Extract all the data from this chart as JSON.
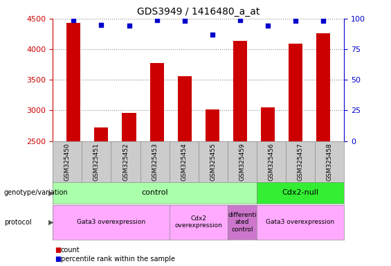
{
  "title": "GDS3949 / 1416480_a_at",
  "samples": [
    "GSM325450",
    "GSM325451",
    "GSM325452",
    "GSM325453",
    "GSM325454",
    "GSM325455",
    "GSM325459",
    "GSM325456",
    "GSM325457",
    "GSM325458"
  ],
  "counts": [
    4430,
    2720,
    2960,
    3770,
    3560,
    3010,
    4140,
    3050,
    4090,
    4260
  ],
  "percentile_ranks": [
    99,
    95,
    94,
    99,
    98,
    87,
    99,
    94,
    98,
    98
  ],
  "ylim_left": [
    2500,
    4500
  ],
  "ylim_right": [
    0,
    100
  ],
  "yticks_left": [
    2500,
    3000,
    3500,
    4000,
    4500
  ],
  "yticks_right": [
    0,
    25,
    50,
    75,
    100
  ],
  "bar_color": "#cc0000",
  "dot_color": "#0000cc",
  "bar_width": 0.5,
  "geno_labels": [
    {
      "text": "control",
      "start": 0,
      "end": 7,
      "color": "#aaffaa"
    },
    {
      "text": "Cdx2-null",
      "start": 7,
      "end": 10,
      "color": "#33ee33"
    }
  ],
  "proto_labels": [
    {
      "text": "Gata3 overexpression",
      "start": 0,
      "end": 4,
      "color": "#ffaaff"
    },
    {
      "text": "Cdx2\noverexpression",
      "start": 4,
      "end": 6,
      "color": "#ffaaff"
    },
    {
      "text": "differenti\nated\ncontrol",
      "start": 6,
      "end": 7,
      "color": "#cc77cc"
    },
    {
      "text": "Gata3 overexpression",
      "start": 7,
      "end": 10,
      "color": "#ffaaff"
    }
  ],
  "left_axis_color": "#cc0000",
  "right_axis_color": "#0000cc",
  "grid_color": "#888888"
}
